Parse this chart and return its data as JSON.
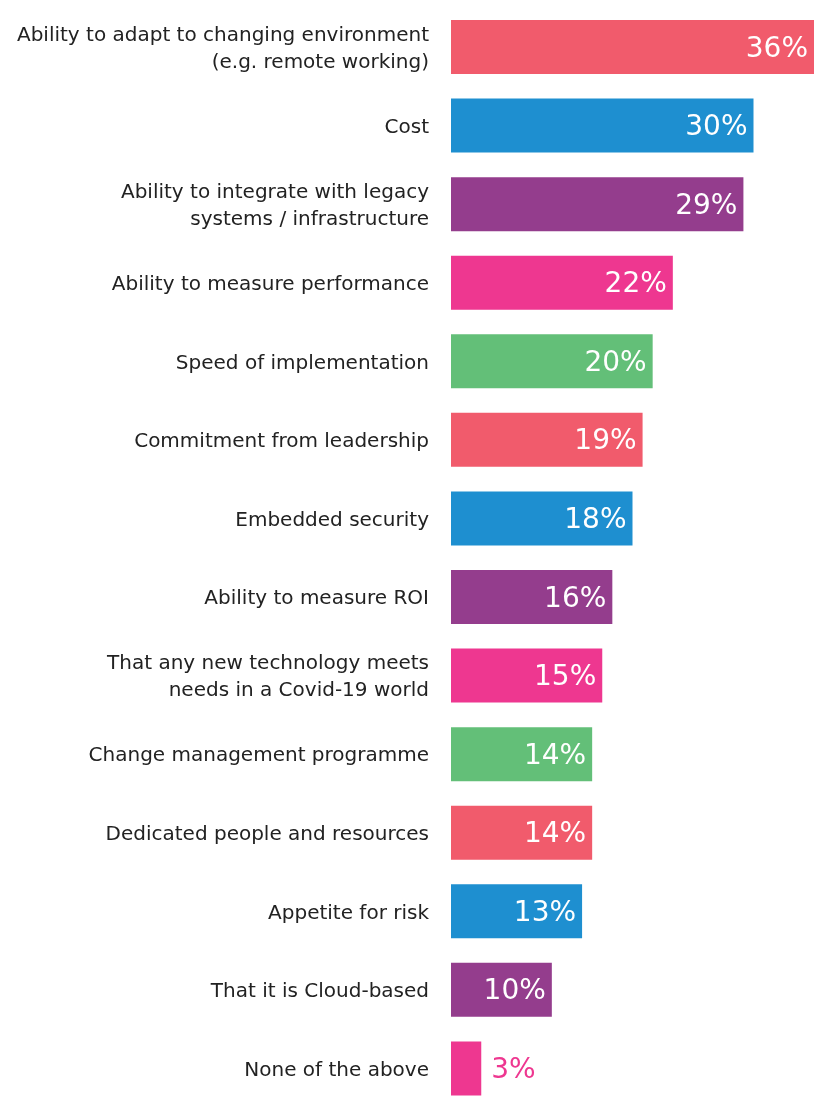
{
  "chart_data": {
    "type": "bar",
    "orientation": "horizontal",
    "categories": [
      "Ability to adapt to changing environment\n(e.g. remote working)",
      "Cost",
      "Ability to integrate with legacy\nsystems / infrastructure",
      "Ability to measure performance",
      "Speed of implementation",
      "Commitment from leadership",
      "Embedded security",
      "Ability to measure ROI",
      "That any new technology meets\nneeds in a Covid-19 world",
      "Change management programme",
      "Dedicated people and resources",
      "Appetite for risk",
      "That it is Cloud-based",
      "None of the above"
    ],
    "values": [
      36,
      30,
      29,
      22,
      20,
      19,
      18,
      16,
      15,
      14,
      14,
      13,
      10,
      3
    ],
    "value_labels": [
      "36%",
      "30%",
      "29%",
      "22%",
      "20%",
      "19%",
      "18%",
      "16%",
      "15%",
      "14%",
      "14%",
      "13%",
      "10%",
      "3%"
    ],
    "colors": [
      "#f15b6c",
      "#1e8fd0",
      "#943d8d",
      "#ee3790",
      "#63bf78",
      "#f15b6c",
      "#1e8fd0",
      "#943d8d",
      "#ee3790",
      "#63bf78",
      "#f15b6c",
      "#1e8fd0",
      "#943d8d",
      "#ee3790"
    ],
    "legend": false,
    "grid": false
  }
}
